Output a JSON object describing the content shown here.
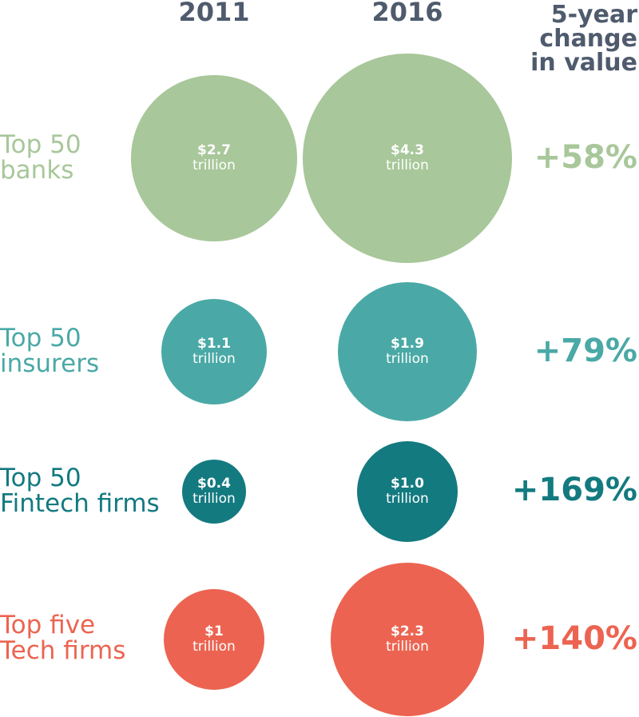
{
  "chart_data": {
    "type": "bubble",
    "columns": [
      "2011",
      "2016"
    ],
    "change_header": [
      "5-year",
      "change",
      "in value"
    ],
    "unit": "trillion",
    "rows": [
      {
        "label": [
          "Top 50",
          "banks"
        ],
        "color": "#a8c79a",
        "v2011": 2.7,
        "v2016": 4.3,
        "label2011": "$2.7",
        "label2016": "$4.3",
        "change": "+58%"
      },
      {
        "label": [
          "Top 50",
          "insurers"
        ],
        "color": "#4aa9a6",
        "v2011": 1.1,
        "v2016": 1.9,
        "label2011": "$1.1",
        "label2016": "$1.9",
        "change": "+79%"
      },
      {
        "label": [
          "Top 50",
          "Fintech firms"
        ],
        "color": "#137a80",
        "v2011": 0.4,
        "v2016": 1.0,
        "label2011": "$0.4",
        "label2016": "$1.0",
        "change": "+169%"
      },
      {
        "label": [
          "Top five",
          "Tech firms"
        ],
        "color": "#ec6451",
        "v2011": 1.0,
        "v2016": 2.3,
        "label2011": "$1",
        "label2016": "$2.3",
        "change": "+140%"
      }
    ]
  }
}
